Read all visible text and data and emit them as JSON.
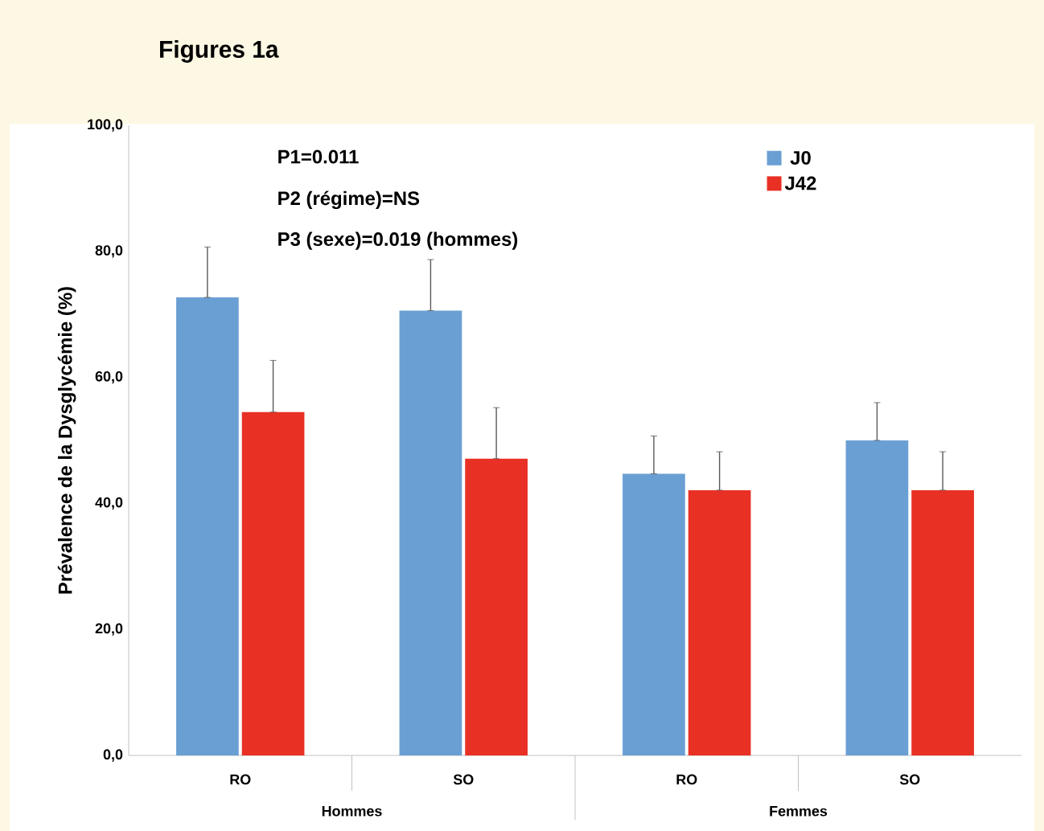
{
  "chart_data": {
    "type": "bar",
    "title": "Figures 1a",
    "ylabel": "Prévalence de la Dysglycémie (%)",
    "categories": [
      "RO",
      "SO",
      "RO",
      "SO"
    ],
    "series": [
      {
        "name": "J0",
        "color": "#6a9fd4",
        "values": [
          72.7,
          70.6,
          44.7,
          50.0
        ],
        "errors": [
          [
            72.7,
            80.7
          ],
          [
            70.6,
            78.7
          ],
          [
            44.7,
            50.7
          ],
          [
            50.0,
            56.0
          ]
        ]
      },
      {
        "name": "J42",
        "color": "#e83024",
        "values": [
          54.5,
          47.1,
          42.1,
          42.1
        ],
        "errors": [
          [
            54.5,
            62.7
          ],
          [
            47.1,
            55.2
          ],
          [
            42.1,
            48.2
          ],
          [
            42.1,
            48.2
          ]
        ]
      }
    ],
    "ylim": [
      0,
      100
    ],
    "yticks": [
      {
        "value": 0,
        "label": "0,0"
      },
      {
        "value": 20,
        "label": "20,0"
      },
      {
        "value": 40,
        "label": "40,0"
      },
      {
        "value": 60,
        "label": "60,0"
      },
      {
        "value": 80,
        "label": "80,0"
      },
      {
        "value": 100,
        "label": "100,0"
      }
    ],
    "grid": false,
    "legend": "top right",
    "annotations": [
      "P1=0.011",
      "P2 (régime)=NS",
      "P3 (sexe)=0.019 (hommes)",
      "Hommes",
      "Femmes"
    ]
  }
}
